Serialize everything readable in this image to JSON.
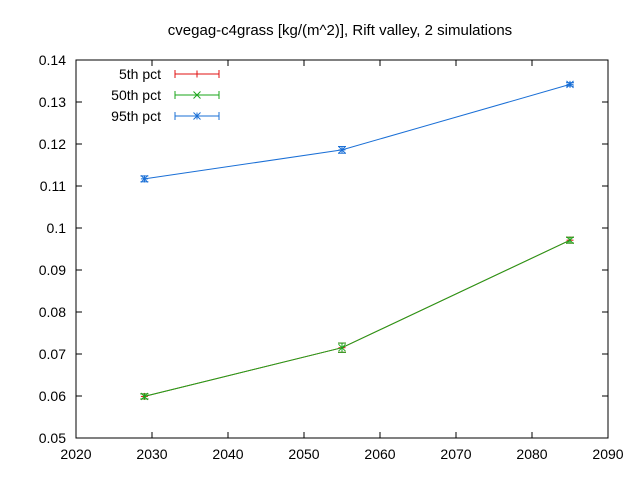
{
  "chart_data": {
    "type": "line",
    "title": "cvegag-c4grass [kg/(m^2)], Rift valley, 2 simulations",
    "xlabel": "",
    "ylabel": "",
    "xlim": [
      2020,
      2090
    ],
    "ylim": [
      0.05,
      0.14
    ],
    "x_ticks": [
      2020,
      2030,
      2040,
      2050,
      2060,
      2070,
      2080,
      2090
    ],
    "y_ticks": [
      0.05,
      0.06,
      0.07,
      0.08,
      0.09,
      0.1,
      0.11,
      0.12,
      0.13,
      0.14
    ],
    "y_tick_labels": [
      "0.05",
      "0.06",
      "0.07",
      "0.08",
      "0.09",
      "0.1",
      "0.11",
      "0.12",
      "0.13",
      "0.14"
    ],
    "grid": false,
    "legend_position": "top-left",
    "series": [
      {
        "name": "5th pct",
        "color": "#e01010",
        "marker": "plus",
        "x": [
          2029,
          2055,
          2085
        ],
        "y": [
          0.0599,
          0.0715,
          0.0971
        ],
        "err": [
          0.0006,
          0.0011,
          0.0007
        ]
      },
      {
        "name": "50th pct",
        "color": "#1aa51a",
        "marker": "cross",
        "x": [
          2029,
          2055,
          2085
        ],
        "y": [
          0.0599,
          0.0715,
          0.0971
        ],
        "err": [
          0.0006,
          0.0011,
          0.0007
        ]
      },
      {
        "name": "95th pct",
        "color": "#1a6fd6",
        "marker": "asterisk",
        "x": [
          2029,
          2055,
          2085
        ],
        "y": [
          0.1117,
          0.1186,
          0.1342
        ],
        "err": [
          0.0007,
          0.0008,
          0.0004
        ]
      }
    ]
  }
}
